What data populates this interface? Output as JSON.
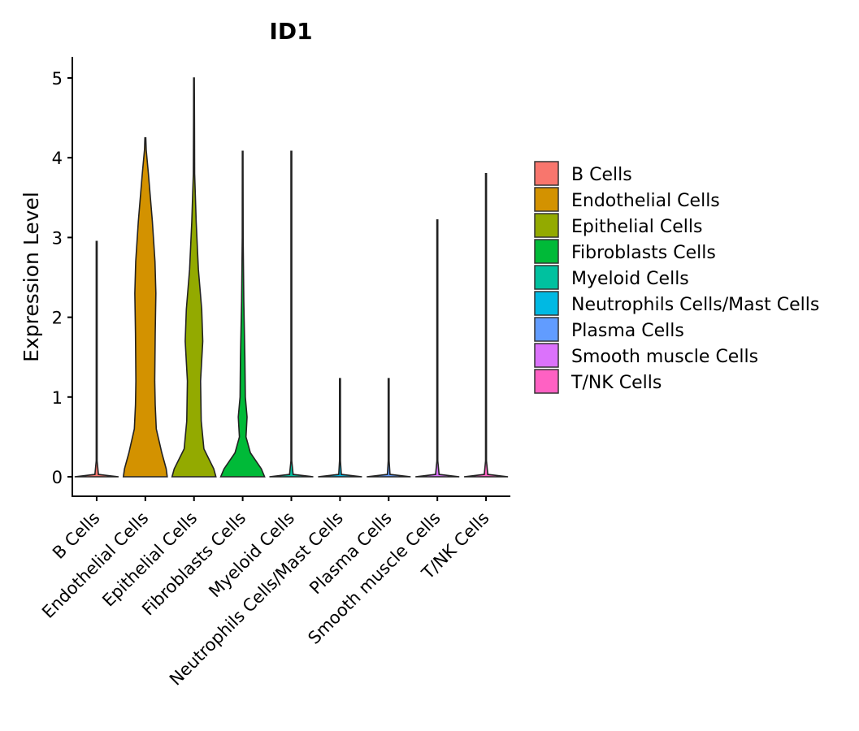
{
  "chart_data": {
    "type": "violin",
    "title": "ID1",
    "xlabel": "",
    "ylabel": "Expression Level",
    "ylim": [
      -0.25,
      5.25
    ],
    "yticks": [
      0,
      1,
      2,
      3,
      4,
      5
    ],
    "categories": [
      "B Cells",
      "Endothelial Cells",
      "Epithelial Cells",
      "Fibroblasts Cells",
      "Myeloid Cells",
      "Neutrophils Cells/Mast Cells",
      "Plasma Cells",
      "Smooth muscle Cells",
      "T/NK Cells"
    ],
    "colors": [
      "#F8766D",
      "#D39200",
      "#93AA00",
      "#00BA38",
      "#00C19F",
      "#00B9E3",
      "#619CFF",
      "#DB72FB",
      "#FF61C3"
    ],
    "series": [
      {
        "name": "B Cells",
        "max": 2.95,
        "density": [
          [
            0,
            1
          ],
          [
            0.03,
            0.08
          ],
          [
            0.2,
            0.02
          ],
          [
            2.95,
            0.02
          ]
        ]
      },
      {
        "name": "Endothelial Cells",
        "max": 4.25,
        "density": [
          [
            0,
            1
          ],
          [
            0.1,
            0.95
          ],
          [
            0.3,
            0.75
          ],
          [
            0.6,
            0.5
          ],
          [
            0.9,
            0.45
          ],
          [
            1.2,
            0.43
          ],
          [
            1.8,
            0.45
          ],
          [
            2.3,
            0.48
          ],
          [
            2.7,
            0.44
          ],
          [
            3.2,
            0.32
          ],
          [
            3.8,
            0.14
          ],
          [
            4.1,
            0.04
          ],
          [
            4.25,
            0.02
          ]
        ]
      },
      {
        "name": "Epithelial Cells",
        "max": 5.0,
        "density": [
          [
            0,
            1
          ],
          [
            0.1,
            0.9
          ],
          [
            0.35,
            0.45
          ],
          [
            0.7,
            0.33
          ],
          [
            1.2,
            0.3
          ],
          [
            1.7,
            0.4
          ],
          [
            2.1,
            0.35
          ],
          [
            2.6,
            0.2
          ],
          [
            3.2,
            0.1
          ],
          [
            3.8,
            0.03
          ],
          [
            4.5,
            0.02
          ],
          [
            5.0,
            0.015
          ]
        ]
      },
      {
        "name": "Fibroblasts Cells",
        "max": 4.08,
        "density": [
          [
            0,
            1
          ],
          [
            0.1,
            0.85
          ],
          [
            0.3,
            0.35
          ],
          [
            0.5,
            0.15
          ],
          [
            0.75,
            0.2
          ],
          [
            1.0,
            0.12
          ],
          [
            1.5,
            0.1
          ],
          [
            2.2,
            0.05
          ],
          [
            3.0,
            0.02
          ],
          [
            4.08,
            0.015
          ]
        ]
      },
      {
        "name": "Myeloid Cells",
        "max": 4.08,
        "density": [
          [
            0,
            1
          ],
          [
            0.03,
            0.08
          ],
          [
            0.2,
            0.02
          ],
          [
            4.08,
            0.02
          ]
        ]
      },
      {
        "name": "Neutrophils Cells/Mast Cells",
        "max": 1.23,
        "density": [
          [
            0,
            1
          ],
          [
            0.03,
            0.06
          ],
          [
            0.2,
            0.02
          ],
          [
            1.23,
            0.02
          ]
        ]
      },
      {
        "name": "Plasma Cells",
        "max": 1.23,
        "density": [
          [
            0,
            1
          ],
          [
            0.03,
            0.06
          ],
          [
            0.2,
            0.02
          ],
          [
            1.23,
            0.02
          ]
        ]
      },
      {
        "name": "Smooth muscle Cells",
        "max": 3.22,
        "density": [
          [
            0,
            1
          ],
          [
            0.03,
            0.08
          ],
          [
            0.2,
            0.02
          ],
          [
            3.22,
            0.02
          ]
        ]
      },
      {
        "name": "T/NK Cells",
        "max": 3.8,
        "density": [
          [
            0,
            1
          ],
          [
            0.03,
            0.08
          ],
          [
            0.2,
            0.02
          ],
          [
            3.8,
            0.02
          ]
        ]
      }
    ],
    "legend": {
      "position": "right",
      "entries": [
        "B Cells",
        "Endothelial Cells",
        "Epithelial Cells",
        "Fibroblasts Cells",
        "Myeloid Cells",
        "Neutrophils Cells/Mast Cells",
        "Plasma Cells",
        "Smooth muscle Cells",
        "T/NK Cells"
      ]
    }
  }
}
